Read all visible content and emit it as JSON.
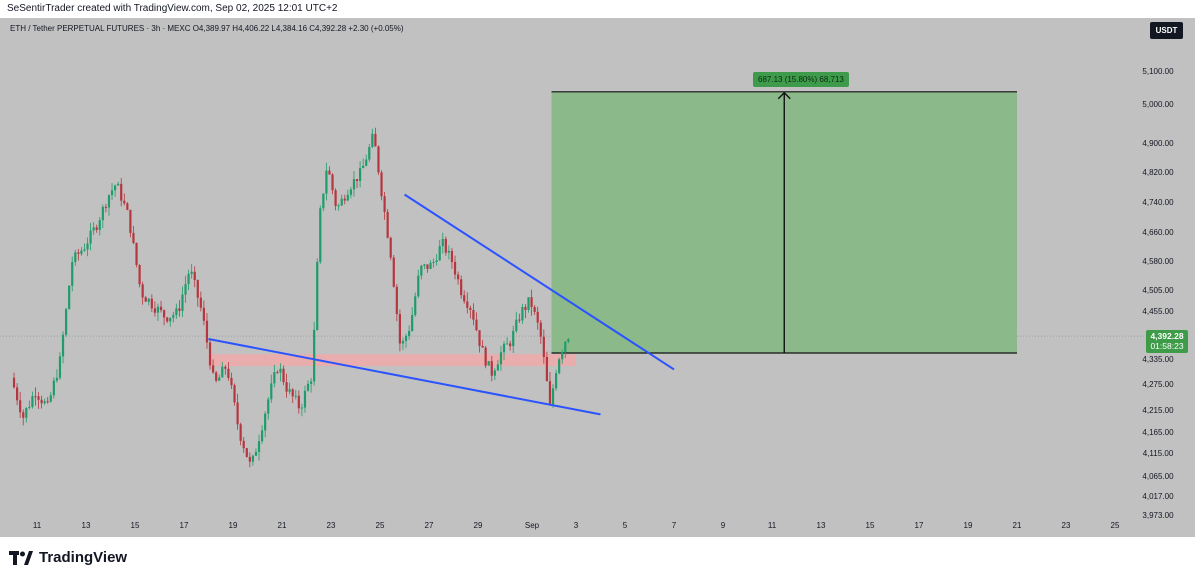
{
  "header": {
    "text": "SeSentirTrader created with TradingView.com, Sep 02, 2025 12:01 UTC+2"
  },
  "symbol": {
    "text": "ETH / Tether PERPETUAL FUTURES · 3h · MEXC  O4,389.97  H4,406.22  L4,384.16  C4,392.28  +2.30 (+0.05%)"
  },
  "currency_button": {
    "label": "USDT"
  },
  "measure": {
    "label": "687.13 (15.80%) 68,713"
  },
  "price_badge": {
    "price": "4,392.28",
    "countdown": "01:58:23"
  },
  "footer": {
    "logo_text": "TradingView"
  },
  "colors": {
    "background": "#c1c1c1",
    "bull": "#1f9c6b",
    "bear": "#b5363f",
    "target_zone": "#8bb98a",
    "support_zone": "#f0a9a9",
    "trendline": "#2b53ff",
    "badge": "#3e9b48"
  },
  "chart_data": {
    "type": "candlestick",
    "symbol": "ETH / Tether PERPETUAL FUTURES",
    "interval": "3h",
    "exchange": "MEXC",
    "x_ticks": [
      "11",
      "13",
      "15",
      "17",
      "19",
      "21",
      "23",
      "25",
      "27",
      "29",
      "Sep",
      "3",
      "5",
      "7",
      "9",
      "11",
      "13",
      "15",
      "17",
      "19",
      "21",
      "23",
      "25"
    ],
    "y_ticks": [
      "5,100.00",
      "5,000.00",
      "4,900.00",
      "4,820.00",
      "4,740.00",
      "4,660.00",
      "4,580.00",
      "4,505.00",
      "4,455.00",
      "4,335.00",
      "4,275.00",
      "4,215.00",
      "4,165.00",
      "4,115.00",
      "4,065.00",
      "4,017.00",
      "3,973.00"
    ],
    "last": {
      "open": 4389.97,
      "high": 4406.22,
      "low": 4384.16,
      "close": 4392.28,
      "change": 2.3,
      "change_pct": 0.05
    },
    "target_zone": {
      "from_price": 4350,
      "to_price": 5037,
      "from_date": "Sep 1",
      "to_date": "Sep 20",
      "label": "687.13 (15.80%) 68,713"
    },
    "support_zone": {
      "low": 4318,
      "high": 4347,
      "from_date": "Aug 18",
      "to_date": "Sep 2"
    },
    "resistance_line": [
      {
        "x": "Aug 26",
        "price": 4760
      },
      {
        "x": "Sep 6",
        "price": 4310
      }
    ],
    "support_line": [
      {
        "x": "Aug 18",
        "price": 4385
      },
      {
        "x": "Sep 3",
        "price": 4205
      }
    ],
    "path_points": [
      {
        "d": 10.0,
        "p": 4290
      },
      {
        "d": 10.5,
        "p": 4200
      },
      {
        "d": 11.0,
        "p": 4260
      },
      {
        "d": 11.5,
        "p": 4220
      },
      {
        "d": 12.0,
        "p": 4330
      },
      {
        "d": 12.5,
        "p": 4580
      },
      {
        "d": 13.0,
        "p": 4620
      },
      {
        "d": 13.5,
        "p": 4680
      },
      {
        "d": 14.0,
        "p": 4760
      },
      {
        "d": 14.3,
        "p": 4790
      },
      {
        "d": 14.8,
        "p": 4700
      },
      {
        "d": 15.3,
        "p": 4500
      },
      {
        "d": 15.8,
        "p": 4470
      },
      {
        "d": 16.3,
        "p": 4440
      },
      {
        "d": 16.8,
        "p": 4450
      },
      {
        "d": 17.3,
        "p": 4560
      },
      {
        "d": 17.8,
        "p": 4450
      },
      {
        "d": 18.3,
        "p": 4270
      },
      {
        "d": 18.8,
        "p": 4320
      },
      {
        "d": 19.3,
        "p": 4170
      },
      {
        "d": 19.8,
        "p": 4080
      },
      {
        "d": 20.5,
        "p": 4240
      },
      {
        "d": 20.9,
        "p": 4320
      },
      {
        "d": 21.3,
        "p": 4260
      },
      {
        "d": 21.8,
        "p": 4220
      },
      {
        "d": 22.3,
        "p": 4300
      },
      {
        "d": 22.6,
        "p": 4700
      },
      {
        "d": 22.9,
        "p": 4840
      },
      {
        "d": 23.3,
        "p": 4720
      },
      {
        "d": 23.8,
        "p": 4780
      },
      {
        "d": 24.3,
        "p": 4820
      },
      {
        "d": 24.8,
        "p": 4920
      },
      {
        "d": 25.1,
        "p": 4780
      },
      {
        "d": 25.5,
        "p": 4600
      },
      {
        "d": 25.9,
        "p": 4360
      },
      {
        "d": 26.3,
        "p": 4420
      },
      {
        "d": 26.7,
        "p": 4560
      },
      {
        "d": 27.2,
        "p": 4570
      },
      {
        "d": 27.6,
        "p": 4630
      },
      {
        "d": 28.0,
        "p": 4580
      },
      {
        "d": 28.4,
        "p": 4500
      },
      {
        "d": 28.8,
        "p": 4460
      },
      {
        "d": 29.2,
        "p": 4360
      },
      {
        "d": 29.6,
        "p": 4300
      },
      {
        "d": 30.0,
        "p": 4350
      },
      {
        "d": 30.4,
        "p": 4380
      },
      {
        "d": 30.8,
        "p": 4450
      },
      {
        "d": 31.2,
        "p": 4480
      },
      {
        "d": 31.6,
        "p": 4400
      },
      {
        "d": 32.0,
        "p": 4220
      },
      {
        "d": 32.3,
        "p": 4330
      },
      {
        "d": 32.7,
        "p": 4395
      }
    ]
  }
}
